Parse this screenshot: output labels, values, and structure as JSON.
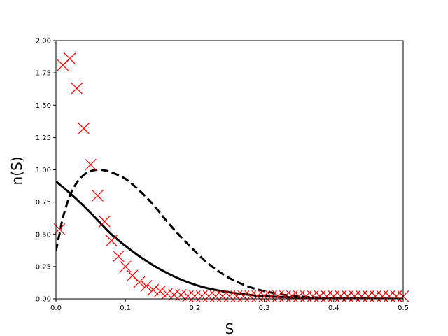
{
  "chart_data": {
    "type": "line",
    "xlabel": "S",
    "ylabel": "n(S)",
    "xlim": [
      0,
      0.5
    ],
    "ylim": [
      0,
      2.0
    ],
    "x_ticks": [
      "0.0",
      "0.1",
      "0.2",
      "0.3",
      "0.4",
      "0.5"
    ],
    "y_ticks": [
      "0.00",
      "0.25",
      "0.50",
      "0.75",
      "1.00",
      "1.25",
      "1.50",
      "1.75",
      "2.00"
    ],
    "grid": false,
    "series": [
      {
        "style": "solid",
        "color": "#000000",
        "x": [
          0.0,
          0.02,
          0.04,
          0.06,
          0.08,
          0.1,
          0.12,
          0.14,
          0.16,
          0.18,
          0.2,
          0.22,
          0.25,
          0.28,
          0.3,
          0.35,
          0.4,
          0.45,
          0.5
        ],
        "y": [
          0.91,
          0.82,
          0.72,
          0.61,
          0.5,
          0.41,
          0.33,
          0.26,
          0.2,
          0.15,
          0.11,
          0.08,
          0.05,
          0.03,
          0.02,
          0.01,
          0.005,
          0.002,
          0.001
        ]
      },
      {
        "style": "dashed",
        "color": "#000000",
        "x": [
          0.0,
          0.005,
          0.01,
          0.02,
          0.03,
          0.04,
          0.05,
          0.06,
          0.07,
          0.08,
          0.1,
          0.12,
          0.14,
          0.16,
          0.18,
          0.2,
          0.22,
          0.25,
          0.28,
          0.3,
          0.33,
          0.36,
          0.4,
          0.45,
          0.5
        ],
        "y": [
          0.37,
          0.5,
          0.63,
          0.8,
          0.9,
          0.96,
          0.99,
          1.0,
          0.995,
          0.98,
          0.93,
          0.84,
          0.73,
          0.6,
          0.48,
          0.37,
          0.27,
          0.16,
          0.09,
          0.06,
          0.03,
          0.015,
          0.005,
          0.001,
          0.0
        ]
      },
      {
        "style": "markers-x",
        "color": "#ff0000",
        "x": [
          0.005,
          0.01,
          0.02,
          0.03,
          0.04,
          0.05,
          0.06,
          0.07,
          0.08,
          0.09,
          0.1,
          0.11,
          0.12,
          0.13,
          0.14,
          0.15,
          0.16,
          0.17,
          0.18,
          0.19,
          0.2,
          0.21,
          0.22,
          0.23,
          0.24,
          0.25,
          0.26,
          0.27,
          0.28,
          0.29,
          0.3,
          0.31,
          0.32,
          0.33,
          0.34,
          0.35,
          0.36,
          0.37,
          0.38,
          0.39,
          0.4,
          0.41,
          0.42,
          0.43,
          0.44,
          0.45,
          0.46,
          0.47,
          0.48,
          0.49,
          0.5
        ],
        "y": [
          0.54,
          1.81,
          1.86,
          1.63,
          1.32,
          1.04,
          0.8,
          0.6,
          0.45,
          0.33,
          0.25,
          0.18,
          0.13,
          0.1,
          0.07,
          0.06,
          0.04,
          0.03,
          0.03,
          0.02,
          0.02,
          0.02,
          0.02,
          0.02,
          0.02,
          0.02,
          0.02,
          0.02,
          0.02,
          0.02,
          0.02,
          0.02,
          0.02,
          0.02,
          0.02,
          0.02,
          0.02,
          0.02,
          0.02,
          0.02,
          0.02,
          0.02,
          0.02,
          0.02,
          0.02,
          0.02,
          0.02,
          0.02,
          0.02,
          0.02,
          0.02
        ]
      }
    ]
  }
}
